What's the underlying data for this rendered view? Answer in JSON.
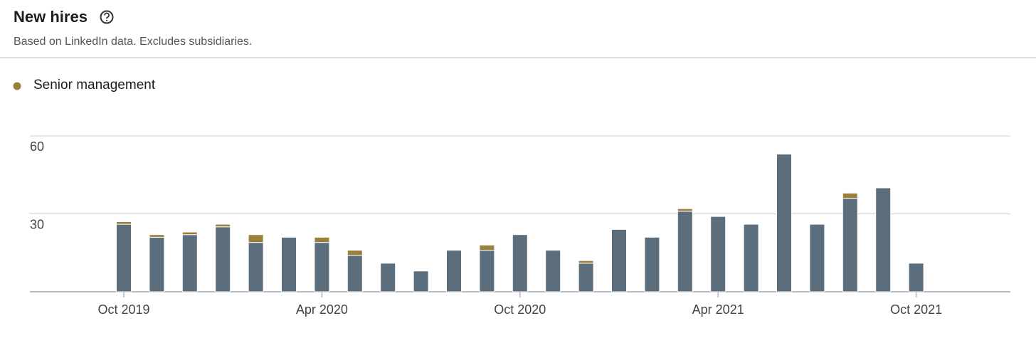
{
  "header": {
    "title": "New hires",
    "subtitle": "Based on LinkedIn data. Excludes subsidiaries."
  },
  "chart_data": {
    "type": "stacked-bar",
    "categories": [
      "Oct 2019",
      null,
      null,
      null,
      null,
      null,
      "Apr 2020",
      null,
      null,
      null,
      null,
      null,
      "Oct 2020",
      null,
      null,
      null,
      null,
      null,
      "Apr 2021",
      null,
      null,
      null,
      null,
      null,
      "Oct 2021"
    ],
    "series": [
      {
        "color": "#5c6d7c",
        "values": [
          26,
          21,
          22,
          25,
          19,
          21,
          19,
          14,
          11,
          8,
          16,
          16,
          22,
          16,
          11,
          24,
          21,
          31,
          29,
          26,
          53,
          26,
          36,
          40,
          11
        ]
      },
      {
        "name": "Senior management",
        "color": "#9b7f3d",
        "values": [
          1,
          1,
          1,
          1,
          3,
          null,
          2,
          2,
          null,
          null,
          null,
          2,
          null,
          null,
          1,
          null,
          null,
          1,
          null,
          null,
          null,
          null,
          2,
          null,
          null
        ]
      }
    ],
    "ylim": [
      0,
      60
    ],
    "yticks": [
      30,
      60
    ],
    "grid": true,
    "legend": "top-left"
  }
}
